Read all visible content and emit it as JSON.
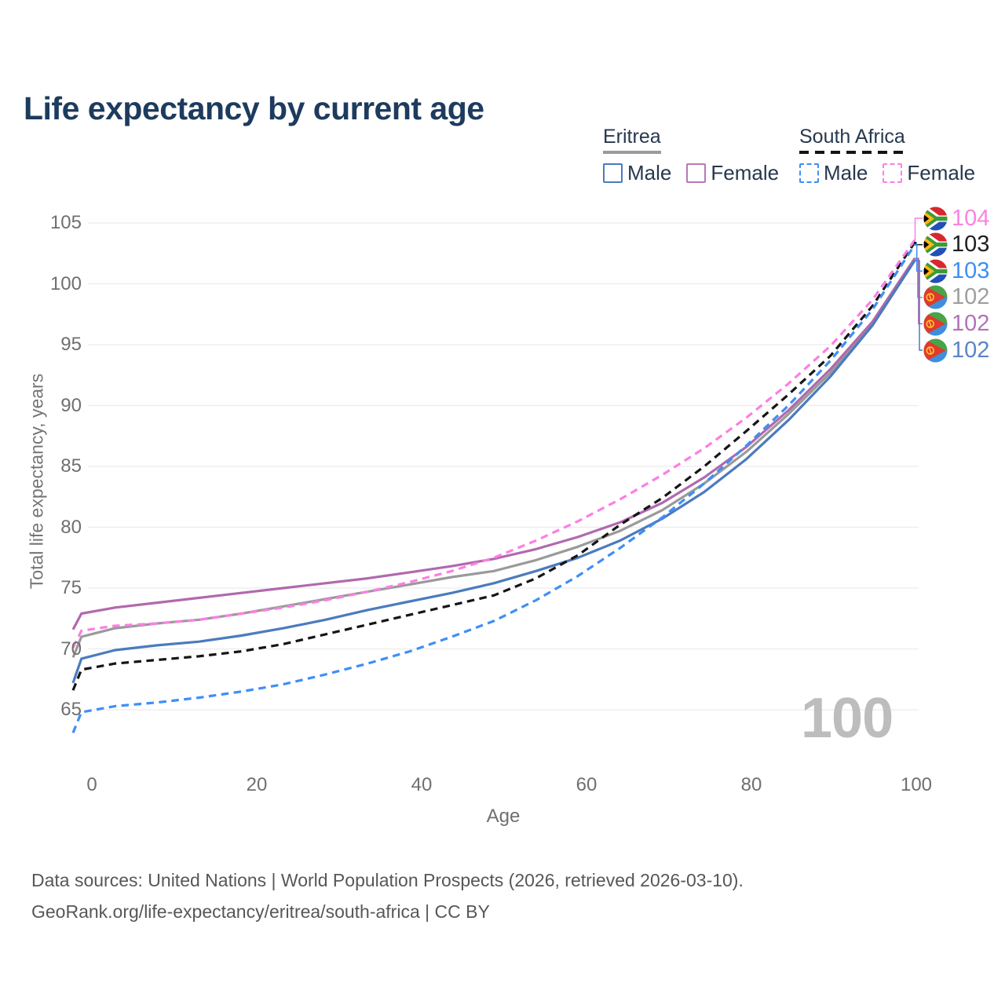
{
  "title": "Life expectancy by current age",
  "legend": {
    "groups": [
      {
        "name": "Eritrea",
        "line_style": "solid",
        "underline_color": "#9a9a9a",
        "items": [
          {
            "label": "Male",
            "color": "#4b7bbd"
          },
          {
            "label": "Female",
            "color": "#b878b8"
          }
        ]
      },
      {
        "name": "South Africa",
        "line_style": "dashed",
        "underline_color": "#141414",
        "items": [
          {
            "label": "Male",
            "color": "#3e8ef7"
          },
          {
            "label": "Female",
            "color": "#fc7fe3"
          }
        ]
      }
    ]
  },
  "chart_data": {
    "type": "line",
    "title": "Life expectancy by current age",
    "xlabel": "Age",
    "ylabel": "Total life expectancy, years",
    "xlim": [
      0,
      100
    ],
    "ylim": [
      63,
      106
    ],
    "x_ticks": [
      0,
      20,
      40,
      60,
      80,
      100
    ],
    "y_ticks": [
      65,
      70,
      75,
      80,
      85,
      90,
      95,
      100,
      105
    ],
    "grid": "horizontal-only",
    "legend_position": "top-right",
    "current_age_indicator": "100",
    "x": [
      0,
      1,
      5,
      10,
      15,
      20,
      25,
      30,
      35,
      40,
      45,
      50,
      55,
      60,
      65,
      70,
      75,
      80,
      85,
      90,
      95,
      100
    ],
    "series": [
      {
        "id": "eritrea-both",
        "country": "Eritrea",
        "sex": "Both sexes",
        "color": "#9a9a9a",
        "line_style": "solid",
        "end_label": "102",
        "label_row": 3,
        "values": [
          69.3,
          71.0,
          71.7,
          72.1,
          72.4,
          72.9,
          73.5,
          74.1,
          74.7,
          75.3,
          75.9,
          76.4,
          77.3,
          78.4,
          79.7,
          81.4,
          83.6,
          86.2,
          89.3,
          92.7,
          96.7,
          102.0
        ]
      },
      {
        "id": "eritrea-female",
        "country": "Eritrea",
        "sex": "Female",
        "color": "#b169ae",
        "line_style": "solid",
        "end_label": "102",
        "label_row": 4,
        "values": [
          71.6,
          72.9,
          73.4,
          73.8,
          74.2,
          74.6,
          75.0,
          75.4,
          75.8,
          76.3,
          76.8,
          77.4,
          78.2,
          79.2,
          80.4,
          82.0,
          84.1,
          86.6,
          89.6,
          93.0,
          96.9,
          102.1
        ]
      },
      {
        "id": "eritrea-male",
        "country": "Eritrea",
        "sex": "Male",
        "color": "#4b7bbd",
        "line_style": "solid",
        "end_label": "102",
        "label_row": 5,
        "values": [
          67.2,
          69.2,
          69.9,
          70.3,
          70.6,
          71.1,
          71.7,
          72.4,
          73.2,
          73.9,
          74.6,
          75.4,
          76.4,
          77.5,
          78.9,
          80.7,
          82.9,
          85.6,
          88.8,
          92.4,
          96.6,
          101.9
        ]
      },
      {
        "id": "south-africa-both",
        "country": "South Africa",
        "sex": "Both sexes",
        "color": "#151515",
        "line_style": "dashed",
        "end_label": "103",
        "label_row": 1,
        "values": [
          66.6,
          68.3,
          68.8,
          69.1,
          69.4,
          69.8,
          70.4,
          71.2,
          72.0,
          72.8,
          73.6,
          74.4,
          75.8,
          77.7,
          80.2,
          82.4,
          85.0,
          87.9,
          90.9,
          94.1,
          98.2,
          103.4
        ]
      },
      {
        "id": "south-africa-male",
        "country": "South Africa",
        "sex": "Male",
        "color": "#3e8ef7",
        "line_style": "dashed",
        "end_label": "103",
        "label_row": 2,
        "values": [
          63.1,
          64.8,
          65.3,
          65.6,
          66.0,
          66.5,
          67.1,
          67.9,
          68.8,
          69.8,
          71.0,
          72.3,
          74.0,
          76.0,
          78.3,
          80.8,
          83.6,
          86.7,
          90.0,
          93.7,
          97.9,
          103.2
        ]
      },
      {
        "id": "south-africa-female",
        "country": "South Africa",
        "sex": "Female",
        "color": "#fc7fe3",
        "line_style": "dashed",
        "end_label": "104",
        "label_row": 0,
        "values": [
          70.1,
          71.5,
          71.9,
          72.1,
          72.4,
          72.9,
          73.4,
          74.0,
          74.7,
          75.5,
          76.4,
          77.5,
          78.9,
          80.5,
          82.3,
          84.3,
          86.5,
          89.0,
          91.8,
          94.9,
          98.7,
          103.6
        ]
      }
    ]
  },
  "end_labels": [
    {
      "series_id": "south-africa-female",
      "flag": "south-africa",
      "value": "104",
      "color": "#f884e2"
    },
    {
      "series_id": "south-africa-both",
      "flag": "south-africa",
      "value": "103",
      "color": "#1f1f1f"
    },
    {
      "series_id": "south-africa-male",
      "flag": "south-africa",
      "value": "103",
      "color": "#3e8ef7"
    },
    {
      "series_id": "eritrea-both",
      "flag": "eritrea",
      "value": "102",
      "color": "#9e9e9e"
    },
    {
      "series_id": "eritrea-female",
      "flag": "eritrea",
      "value": "102",
      "color": "#b273b8"
    },
    {
      "series_id": "eritrea-male",
      "flag": "eritrea",
      "value": "102",
      "color": "#5b85c6"
    }
  ],
  "footer": {
    "line1": "Data sources: United Nations | World Population Prospects (2026, retrieved 2026-03-10).",
    "line2": "GeoRank.org/life-expectancy/eritrea/south-africa | CC BY"
  }
}
